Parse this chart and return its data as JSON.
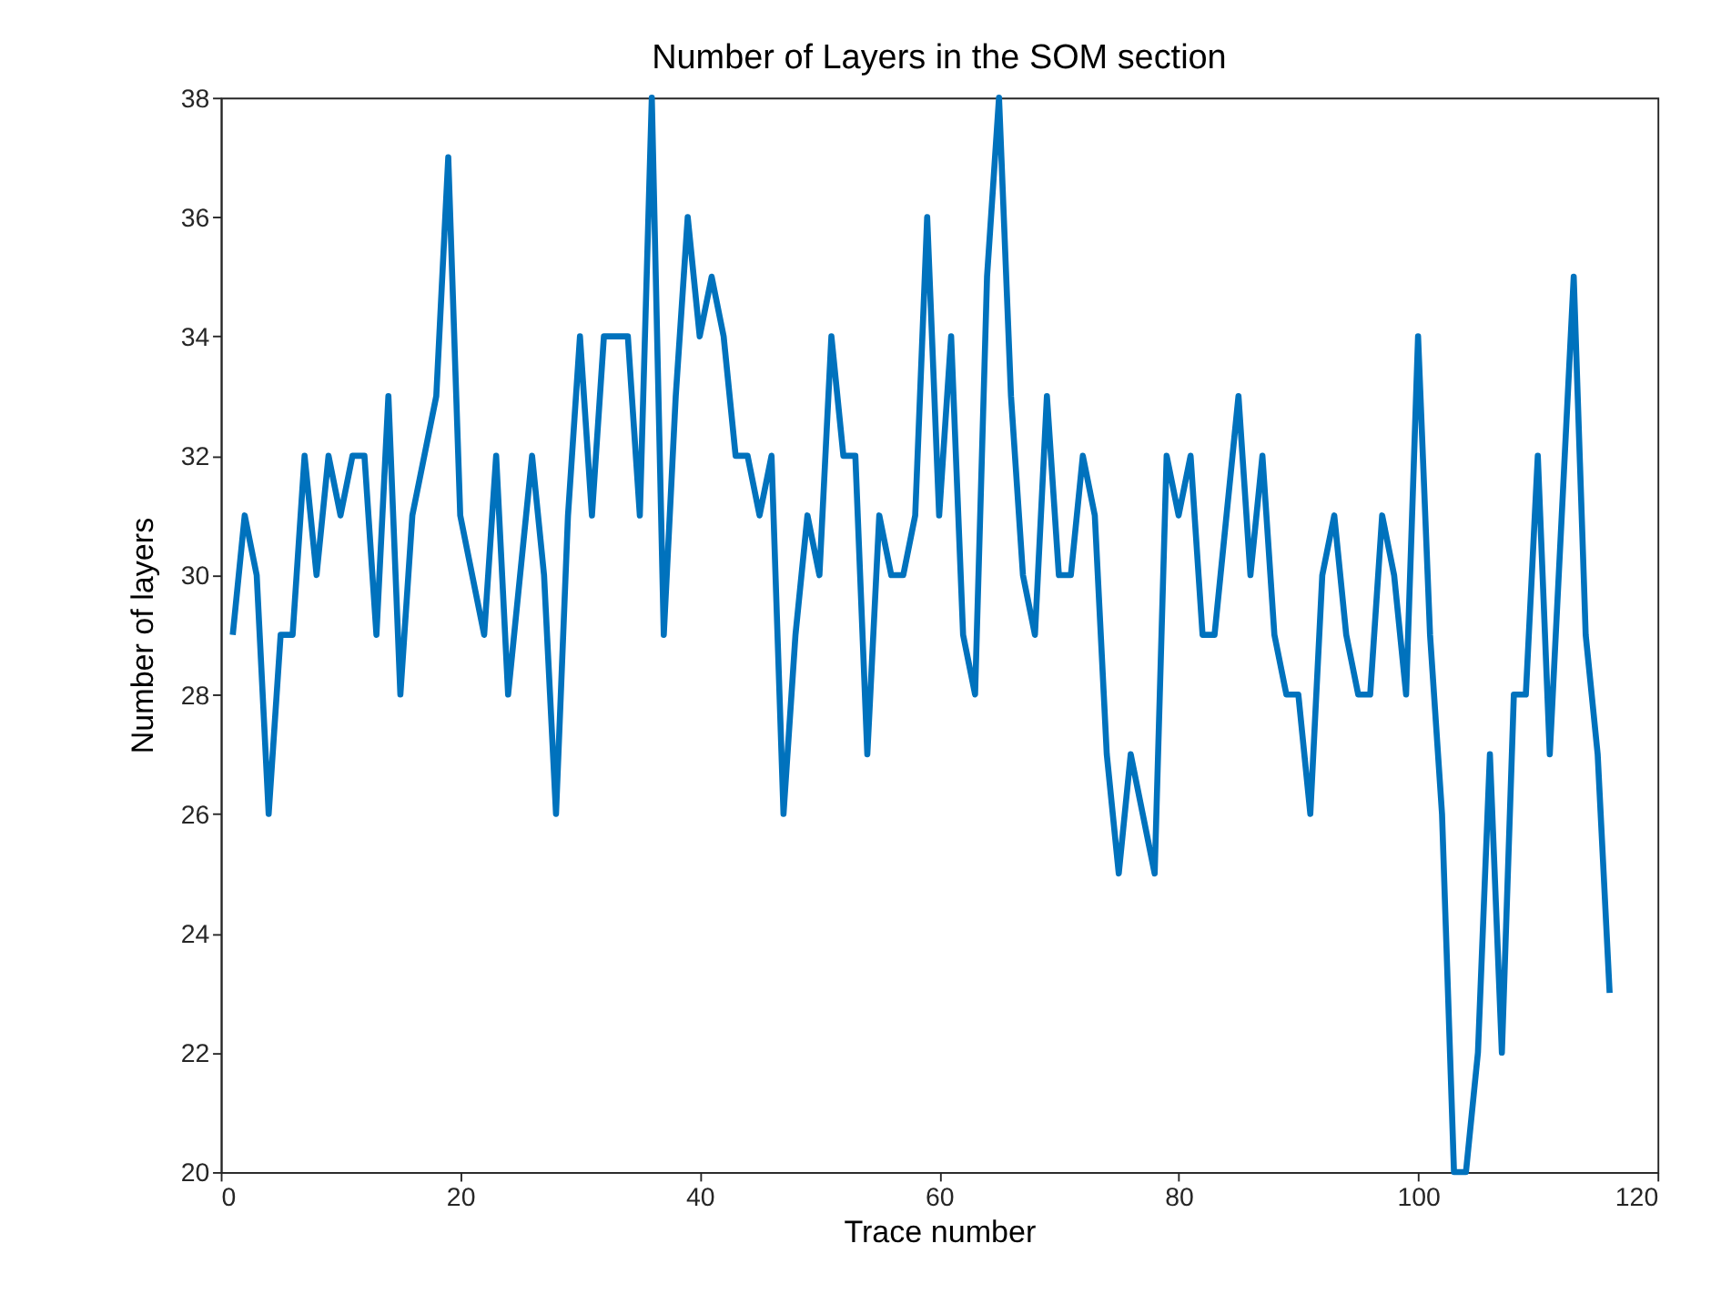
{
  "chart_data": {
    "type": "line",
    "title": "Number of Layers in the SOM section",
    "xlabel": "Trace number",
    "ylabel": "Number of layers",
    "x": [
      1,
      2,
      3,
      4,
      5,
      6,
      7,
      8,
      9,
      10,
      11,
      12,
      13,
      14,
      15,
      16,
      17,
      18,
      19,
      20,
      21,
      22,
      23,
      24,
      25,
      26,
      27,
      28,
      29,
      30,
      31,
      32,
      33,
      34,
      35,
      36,
      37,
      38,
      39,
      40,
      41,
      42,
      43,
      44,
      45,
      46,
      47,
      48,
      49,
      50,
      51,
      52,
      53,
      54,
      55,
      56,
      57,
      58,
      59,
      60,
      61,
      62,
      63,
      64,
      65,
      66,
      67,
      68,
      69,
      70,
      71,
      72,
      73,
      74,
      75,
      76,
      77,
      78,
      79,
      80,
      81,
      82,
      83,
      84,
      85,
      86,
      87,
      88,
      89,
      90,
      91,
      92,
      93,
      94,
      95,
      96,
      97,
      98,
      99,
      100,
      101,
      102,
      103,
      104,
      105,
      106,
      107,
      108,
      109,
      110,
      111,
      112,
      113,
      114,
      115,
      116
    ],
    "series": [
      {
        "color": "#0072bd",
        "values": [
          29,
          31,
          30,
          26,
          29,
          29,
          32,
          30,
          32,
          31,
          32,
          32,
          29,
          33,
          28,
          31,
          32,
          33,
          37,
          31,
          30,
          29,
          32,
          28,
          30,
          32,
          30,
          26,
          31,
          34,
          31,
          34,
          34,
          34,
          31,
          38,
          29,
          33,
          36,
          34,
          35,
          34,
          32,
          32,
          31,
          32,
          26,
          29,
          31,
          30,
          34,
          32,
          32,
          27,
          31,
          30,
          30,
          31,
          36,
          31,
          34,
          29,
          28,
          35,
          38,
          33,
          30,
          29,
          33,
          30,
          30,
          32,
          31,
          27,
          25,
          27,
          26,
          25,
          32,
          31,
          32,
          29,
          29,
          31,
          33,
          30,
          32,
          29,
          28,
          28,
          26,
          30,
          31,
          29,
          28,
          28,
          31,
          30,
          28,
          34,
          29,
          26,
          20,
          20,
          22,
          27,
          22,
          28,
          28,
          32,
          27,
          31,
          35,
          29,
          27,
          23
        ]
      }
    ],
    "xlim": [
      0,
      120
    ],
    "xticks": [
      0,
      20,
      40,
      60,
      80,
      100,
      120
    ],
    "ylim": [
      20,
      38
    ],
    "yticks": [
      20,
      22,
      24,
      26,
      28,
      30,
      32,
      34,
      36,
      38
    ],
    "grid": false,
    "marker": "none",
    "line_style": "solid"
  }
}
